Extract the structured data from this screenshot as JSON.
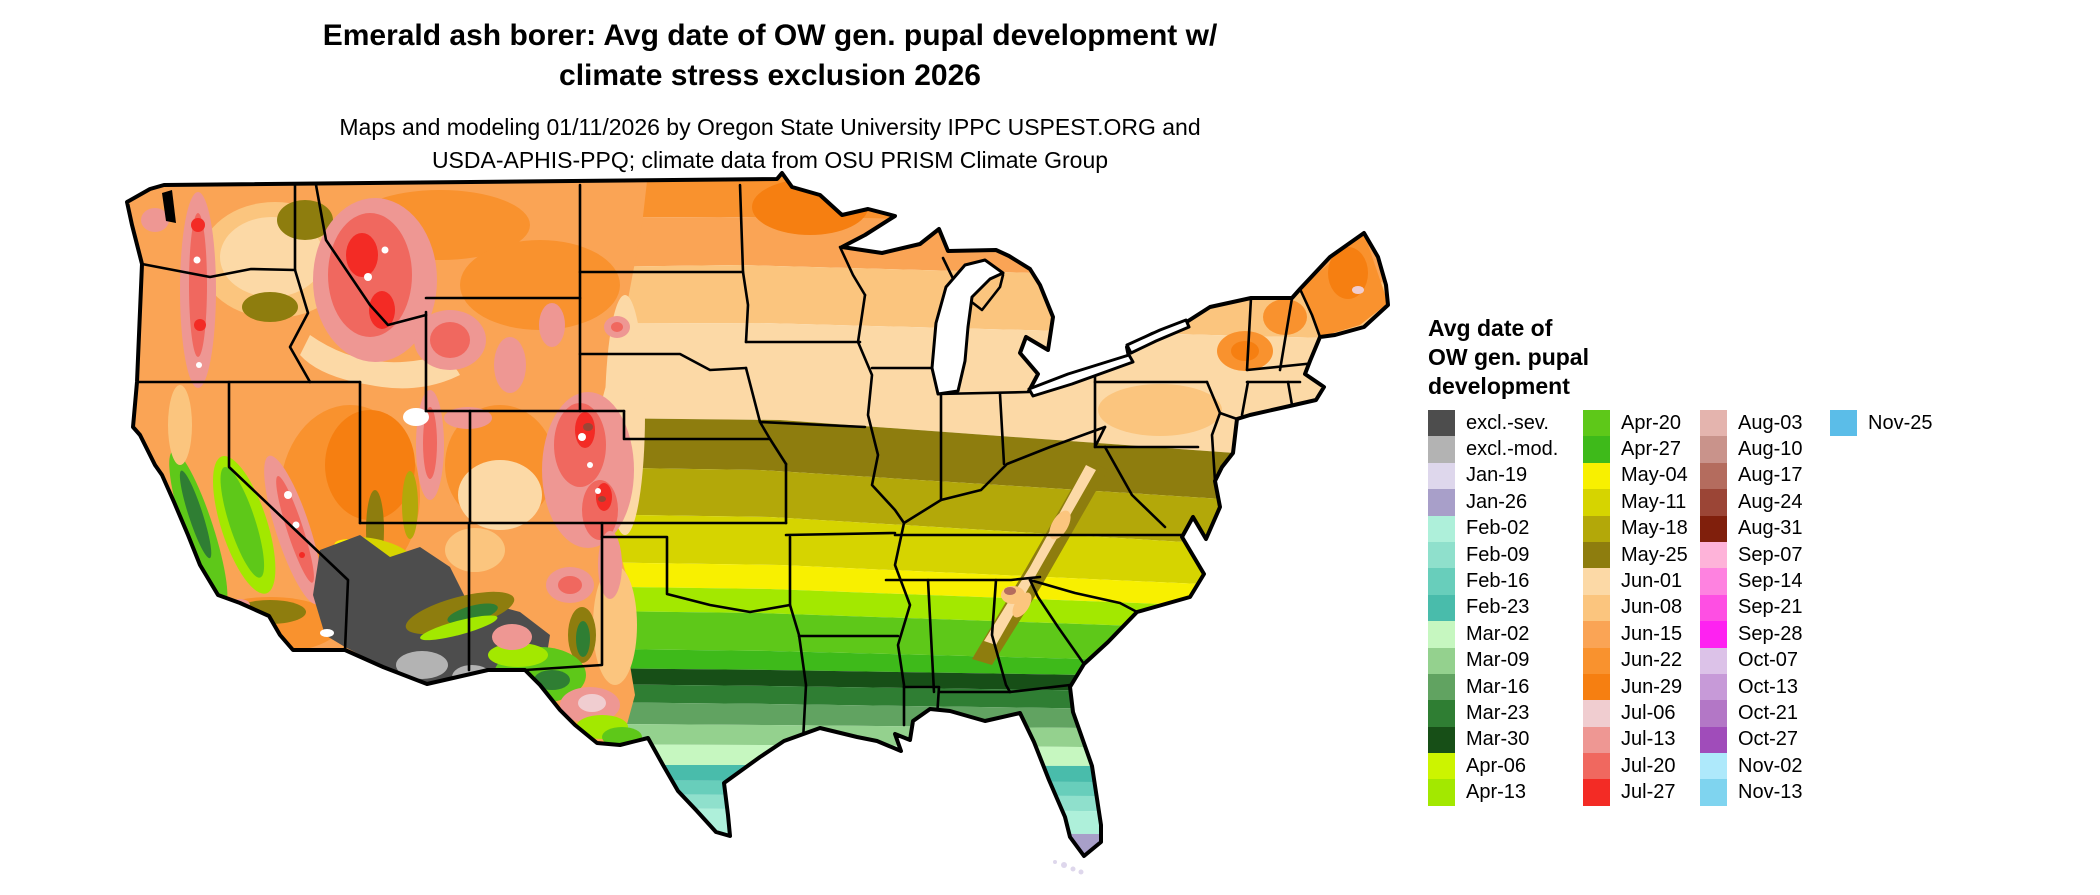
{
  "header": {
    "title_line1": "Emerald ash borer: Avg date of OW gen. pupal development w/",
    "title_line2": "climate stress exclusion 2026",
    "subtitle_line1": "Maps and modeling 01/11/2026 by Oregon State University IPPC USPEST.ORG and",
    "subtitle_line2": "USDA-APHIS-PPQ; climate data from OSU PRISM Climate Group"
  },
  "legend": {
    "title_line1": "Avg date of",
    "title_line2": "OW gen. pupal",
    "title_line3": "development",
    "columns": [
      [
        {
          "label": "excl.-sev.",
          "color": "#4d4d4d"
        },
        {
          "label": "excl.-mod.",
          "color": "#b3b3b3"
        },
        {
          "label": "Jan-19",
          "color": "#ded7ec"
        },
        {
          "label": "Jan-26",
          "color": "#a89fc9"
        },
        {
          "label": "Feb-02",
          "color": "#aef0da"
        },
        {
          "label": "Feb-09",
          "color": "#8fe0cc"
        },
        {
          "label": "Feb-16",
          "color": "#68cebb"
        },
        {
          "label": "Feb-23",
          "color": "#49bcab"
        },
        {
          "label": "Mar-02",
          "color": "#c6f7c0"
        },
        {
          "label": "Mar-09",
          "color": "#94d18e"
        },
        {
          "label": "Mar-16",
          "color": "#61a361"
        },
        {
          "label": "Mar-23",
          "color": "#2f7e33"
        },
        {
          "label": "Mar-30",
          "color": "#174f17"
        },
        {
          "label": "Apr-06",
          "color": "#ccf400"
        },
        {
          "label": "Apr-13",
          "color": "#a3e800"
        }
      ],
      [
        {
          "label": "Apr-20",
          "color": "#5ec819"
        },
        {
          "label": "Apr-27",
          "color": "#3eba1a"
        },
        {
          "label": "May-04",
          "color": "#f8f000"
        },
        {
          "label": "May-11",
          "color": "#d6d400"
        },
        {
          "label": "May-18",
          "color": "#b3a809"
        },
        {
          "label": "May-25",
          "color": "#8e7d0e"
        },
        {
          "label": "Jun-01",
          "color": "#fcd9a6"
        },
        {
          "label": "Jun-08",
          "color": "#fbc57e"
        },
        {
          "label": "Jun-15",
          "color": "#faa455"
        },
        {
          "label": "Jun-22",
          "color": "#f9922e"
        },
        {
          "label": "Jun-29",
          "color": "#f67f11"
        },
        {
          "label": "Jul-06",
          "color": "#f0cdd0"
        },
        {
          "label": "Jul-13",
          "color": "#ee9793"
        },
        {
          "label": "Jul-20",
          "color": "#f0685f"
        },
        {
          "label": "Jul-27",
          "color": "#f32b25"
        }
      ],
      [
        {
          "label": "Aug-03",
          "color": "#e4b4ae"
        },
        {
          "label": "Aug-10",
          "color": "#c9938b"
        },
        {
          "label": "Aug-17",
          "color": "#b46c5e"
        },
        {
          "label": "Aug-24",
          "color": "#9b4536"
        },
        {
          "label": "Aug-31",
          "color": "#801f0c"
        },
        {
          "label": "Sep-07",
          "color": "#feb3d9"
        },
        {
          "label": "Sep-14",
          "color": "#fe82e0"
        },
        {
          "label": "Sep-21",
          "color": "#fe4fe3"
        },
        {
          "label": "Sep-28",
          "color": "#fe22f1"
        },
        {
          "label": "Oct-07",
          "color": "#dcc2e8"
        },
        {
          "label": "Oct-13",
          "color": "#c79ad8"
        },
        {
          "label": "Oct-21",
          "color": "#b377c6"
        },
        {
          "label": "Oct-27",
          "color": "#a04cba"
        },
        {
          "label": "Nov-02",
          "color": "#aee9fb"
        },
        {
          "label": "Nov-13",
          "color": "#7fd4ef"
        }
      ],
      [
        {
          "label": "Nov-25",
          "color": "#5bbde8"
        }
      ]
    ]
  },
  "map": {
    "alt": "Contiguous United States choropleth map of average date of overwintering generation pupal development"
  }
}
